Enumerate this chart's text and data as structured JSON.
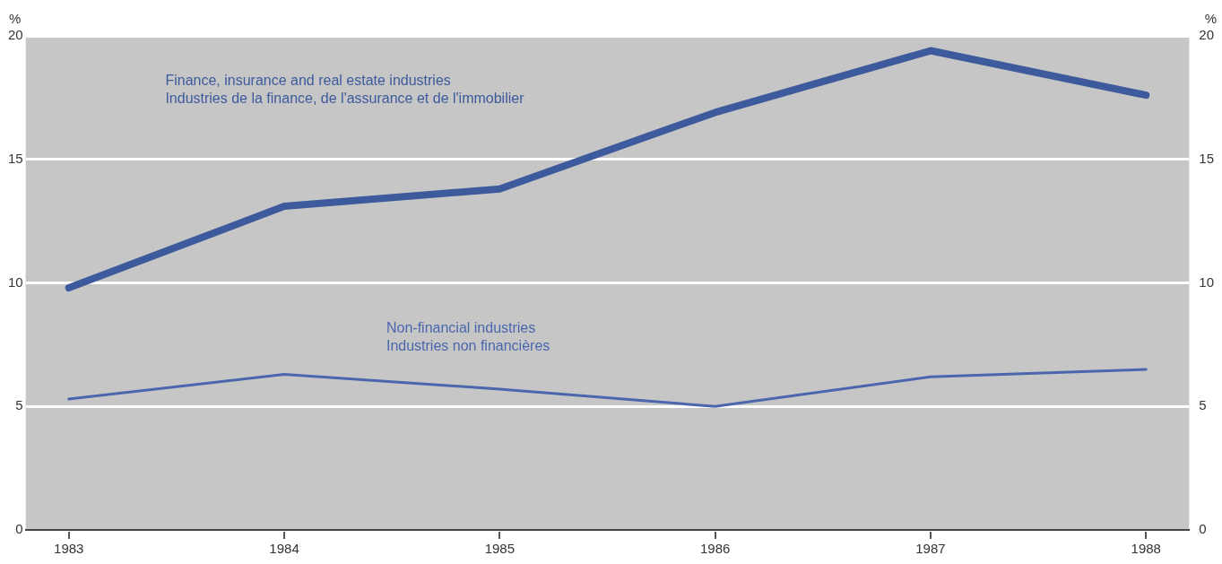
{
  "chart_data": {
    "type": "line",
    "ylabel": "%",
    "y2label": "%",
    "x": [
      1983,
      1984,
      1985,
      1986,
      1987,
      1988
    ],
    "xlim": [
      1982.8,
      1988.2
    ],
    "xticks": [
      1983,
      1984,
      1985,
      1986,
      1987,
      1988
    ],
    "ylim": [
      0,
      20
    ],
    "yticks": [
      0,
      5,
      10,
      15,
      20
    ],
    "y2lim": [
      0,
      20
    ],
    "y2ticks": [
      0,
      5,
      10,
      15,
      20
    ],
    "grid": "y",
    "legend": false,
    "marker": "none",
    "line_style": "solid",
    "series": [
      {
        "name": "Finance, insurance and real estate industries\nIndustries de la finance, de l'assurance et de l'immobilier",
        "color": "#3c5a9c",
        "values": [
          9.8,
          13.1,
          13.8,
          16.9,
          19.4,
          17.6
        ]
      },
      {
        "name": "Non-financial industries\nIndustries non financières",
        "color": "#4a67ad",
        "values": [
          5.3,
          6.3,
          5.7,
          5.0,
          6.2,
          6.5
        ]
      }
    ]
  }
}
